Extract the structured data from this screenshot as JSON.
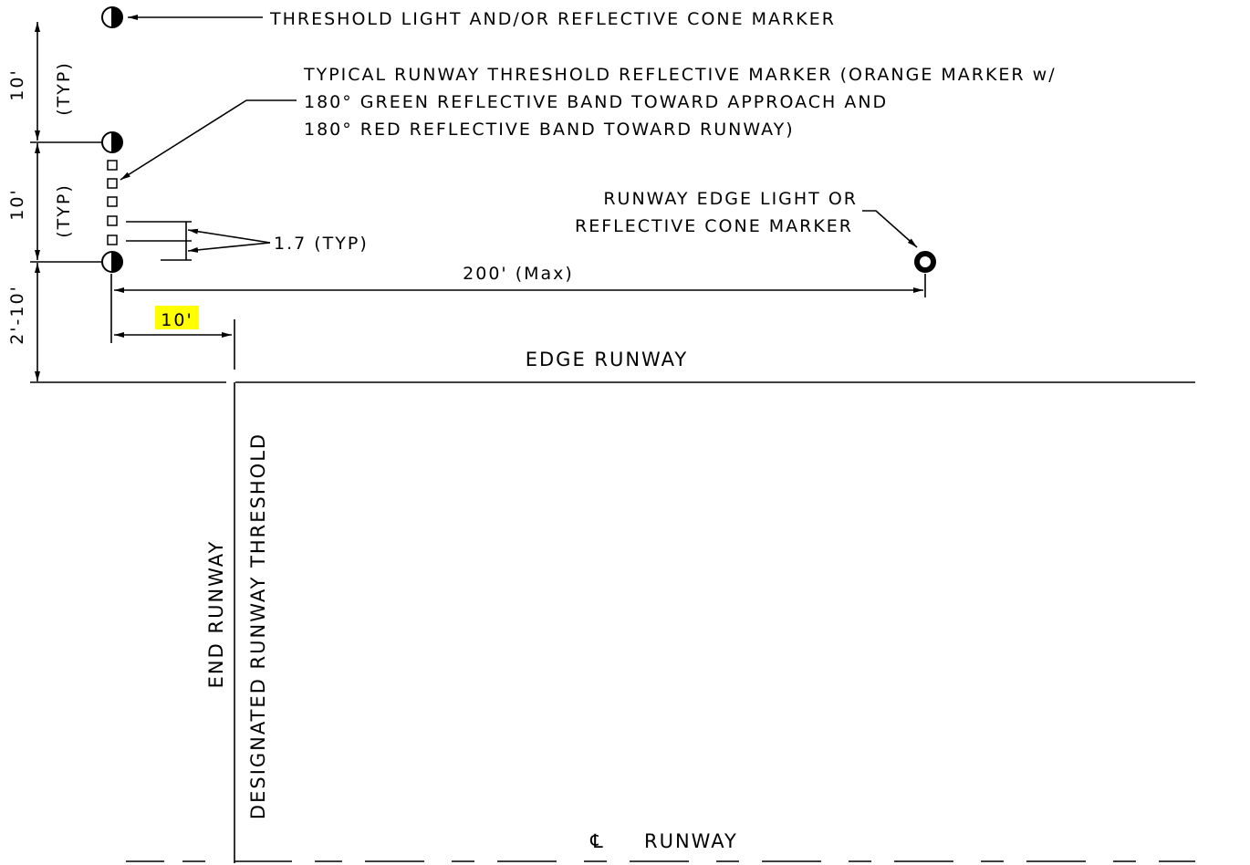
{
  "colors": {
    "ink": "#000000",
    "paper": "#ffffff",
    "highlight": "#ffff00"
  },
  "labels": {
    "threshold_light": "THRESHOLD LIGHT AND/OR REFLECTIVE CONE MARKER",
    "reflective_marker_line1": "TYPICAL RUNWAY THRESHOLD REFLECTIVE MARKER (ORANGE MARKER w/",
    "reflective_marker_line2": "180° GREEN REFLECTIVE BAND TOWARD APPROACH AND",
    "reflective_marker_line3": "180° RED REFLECTIVE BAND TOWARD RUNWAY)",
    "edge_light_line1": "RUNWAY EDGE LIGHT OR",
    "edge_light_line2": "REFLECTIVE CONE MARKER",
    "marker_spacing": "1.7 (TYP)",
    "max_spacing": "200' (Max)",
    "offset_10": "10'",
    "edge_runway": "EDGE RUNWAY",
    "end_runway": "END RUNWAY",
    "designated_threshold": "DESIGNATED RUNWAY THRESHOLD",
    "centerline_symbol": "℄",
    "centerline_runway": "RUNWAY"
  },
  "dimensions": {
    "upper_10": "10'",
    "upper_typ": "(TYP)",
    "middle_10": "10'",
    "middle_typ": "(TYP)",
    "bottom": "2'-10'"
  },
  "icons": {
    "threshold_light": "half-filled-circle-icon",
    "edge_light": "ring-dot-icon",
    "reflective_marker": "square-icon"
  }
}
